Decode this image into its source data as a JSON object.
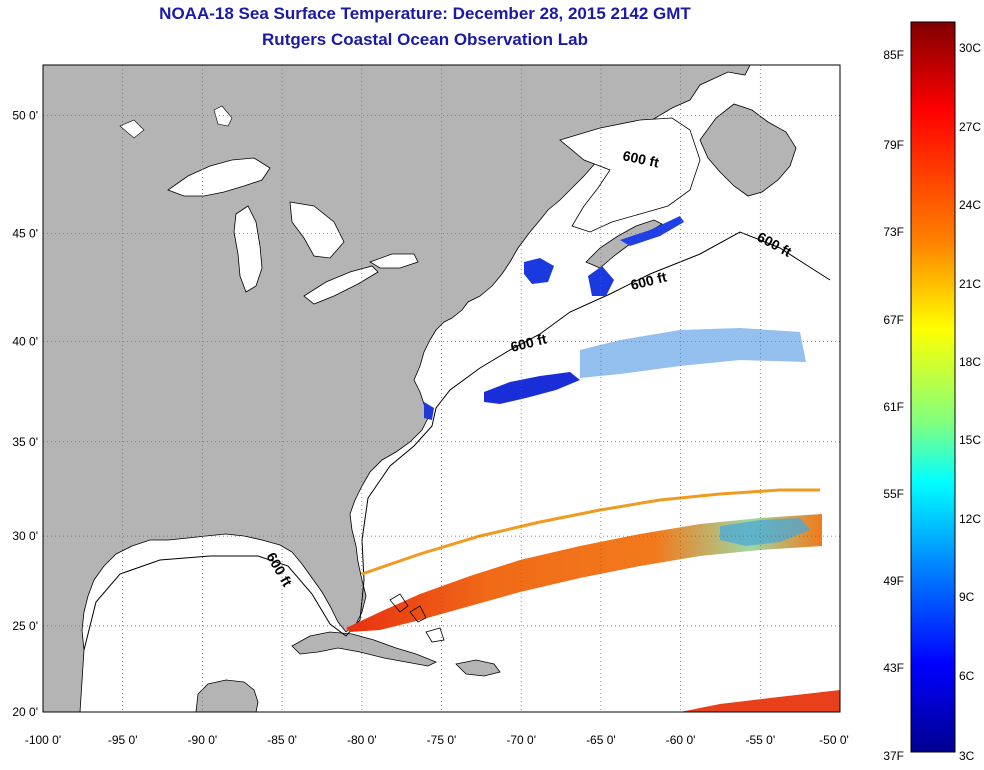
{
  "title": "NOAA-18 Sea Surface Temperature:  December 28, 2015 2142 GMT",
  "subtitle": "Rutgers Coastal Ocean Observation Lab",
  "map": {
    "lon_range": [
      -100,
      -50
    ],
    "lat_range": [
      20,
      52
    ],
    "lon_ticks": [
      "-100 0'",
      "-95 0'",
      "-90 0'",
      "-85 0'",
      "-80 0'",
      "-75 0'",
      "-70 0'",
      "-65 0'",
      "-60 0'",
      "-55 0'",
      "-50 0'"
    ],
    "lat_ticks": [
      "20 0'",
      "25 0'",
      "30 0'",
      "35 0'",
      "40 0'",
      "45 0'",
      "50 0'"
    ],
    "lat_values": [
      20,
      25,
      30,
      35,
      40,
      45,
      50
    ],
    "lon_values": [
      -100,
      -95,
      -90,
      -85,
      -80,
      -75,
      -70,
      -65,
      -60,
      -55,
      -50
    ],
    "contour_label": "600 ft",
    "land_color": "#b4b4b4",
    "ocean_color": "#ffffff"
  },
  "colorbar": {
    "fahrenheit_labels": [
      "85F",
      "79F",
      "73F",
      "67F",
      "61F",
      "55F",
      "49F",
      "43F",
      "37F"
    ],
    "celsius_labels": [
      "30C",
      "27C",
      "24C",
      "21C",
      "18C",
      "15C",
      "12C",
      "9C",
      "6C",
      "3C"
    ],
    "colors": [
      "#7f0000",
      "#ff0000",
      "#ff7f00",
      "#ffff00",
      "#7fff7f",
      "#00ffff",
      "#007fff",
      "#0000ff",
      "#00008f"
    ]
  }
}
